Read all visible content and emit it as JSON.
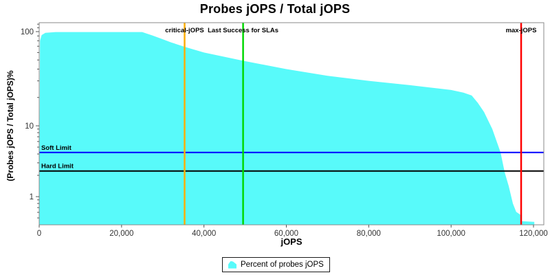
{
  "title": "Probes jOPS / Total jOPS",
  "axes": {
    "x_title": "jOPS",
    "y_title": "(Probes jOPS / Total jOPS)%"
  },
  "legend": {
    "entries": [
      {
        "label": "Percent of probes jOPS",
        "color": "#58FAFA"
      }
    ]
  },
  "chart_data": {
    "type": "area",
    "title": "Probes jOPS / Total jOPS",
    "xlabel": "jOPS",
    "ylabel": "(Probes jOPS / Total jOPS)%",
    "x_range": [
      0,
      122500
    ],
    "y_scale": "log",
    "y_range": [
      0.4,
      125
    ],
    "x_ticks": [
      {
        "value": 0,
        "label": "0"
      },
      {
        "value": 20000,
        "label": "20,000"
      },
      {
        "value": 40000,
        "label": "40,000"
      },
      {
        "value": 60000,
        "label": "60,000"
      },
      {
        "value": 80000,
        "label": "80,000"
      },
      {
        "value": 100000,
        "label": "100,000"
      },
      {
        "value": 120000,
        "label": "120,000"
      }
    ],
    "y_ticks": [
      {
        "value": 100,
        "label": "100"
      },
      {
        "value": 10,
        "label": "10"
      },
      {
        "value": 1,
        "label": "1"
      }
    ],
    "series": [
      {
        "name": "Percent of probes jOPS",
        "color": "#58FAFA",
        "points": [
          [
            200,
            80
          ],
          [
            600,
            92
          ],
          [
            1500,
            97
          ],
          [
            4000,
            99
          ],
          [
            25000,
            99
          ],
          [
            27500,
            91
          ],
          [
            30000,
            83
          ],
          [
            32000,
            77
          ],
          [
            35300,
            69
          ],
          [
            40000,
            60
          ],
          [
            49500,
            49
          ],
          [
            60000,
            40
          ],
          [
            70000,
            34
          ],
          [
            80000,
            30
          ],
          [
            90000,
            27
          ],
          [
            100000,
            24
          ],
          [
            103000,
            22.5
          ],
          [
            105000,
            21
          ],
          [
            106500,
            17.5
          ],
          [
            108000,
            14
          ],
          [
            110000,
            9
          ],
          [
            112000,
            4.2
          ],
          [
            113000,
            2.2
          ],
          [
            114000,
            1.4
          ],
          [
            115000,
            0.8
          ],
          [
            115800,
            0.61
          ],
          [
            116900,
            0.55
          ],
          [
            117200,
            0.45
          ],
          [
            120200,
            0.44
          ]
        ]
      }
    ],
    "vertical_markers": [
      {
        "label": "critical-jOPS",
        "x": 35300,
        "color": "#FFAE00"
      },
      {
        "label": "Last Success for SLAs",
        "x": 49500,
        "color": "#00D800"
      },
      {
        "label": "max-jOPS",
        "x": 117000,
        "color": "#FF0000"
      }
    ],
    "horizontal_limits": [
      {
        "label": "Soft Limit",
        "y": 4.2,
        "color": "#0000FF"
      },
      {
        "label": "Hard Limit",
        "y": 2.3,
        "color": "#000000"
      }
    ],
    "grid": false,
    "legend_position": "bottom"
  }
}
